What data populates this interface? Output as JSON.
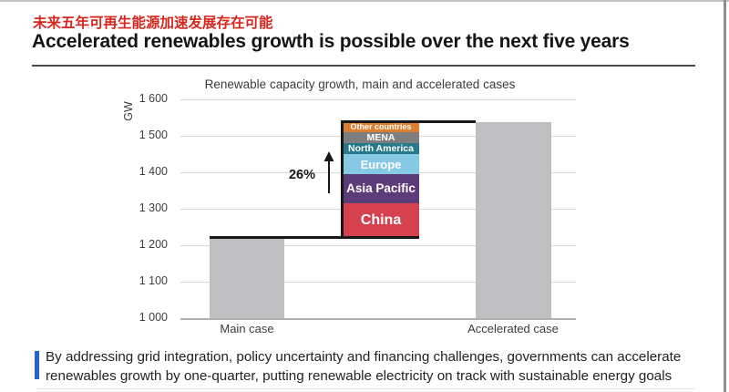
{
  "header": {
    "subtitle_cn": "未来五年可再生能源加速发展存在可能",
    "title_en": "Accelerated renewables growth is possible over the next five years"
  },
  "chart_data": {
    "type": "bar",
    "title": "Renewable capacity growth, main and accelerated cases",
    "ylabel": "GW",
    "ylim": [
      1000,
      1600
    ],
    "ytick_values": [
      1000,
      1100,
      1200,
      1300,
      1400,
      1500,
      1600
    ],
    "ytick_labels": [
      "1 000",
      "1 100",
      "1 200",
      "1 300",
      "1 400",
      "1 500",
      "1 600"
    ],
    "grid": true,
    "legend_position": "none",
    "categories": [
      "Main case",
      "Accelerated case"
    ],
    "values": [
      1220,
      1537
    ],
    "growth_label": "26%",
    "stacked_segments": [
      {
        "name": "China",
        "value": 95,
        "color": "#d5414e"
      },
      {
        "name": "Asia Pacific",
        "value": 80,
        "color": "#5c3c78"
      },
      {
        "name": "Europe",
        "value": 55,
        "color": "#85c9e5"
      },
      {
        "name": "North America",
        "value": 30,
        "color": "#27798c"
      },
      {
        "name": "MENA",
        "value": 30,
        "color": "#7e7e80"
      },
      {
        "name": "Other countries",
        "value": 27,
        "color": "#de7e30"
      }
    ]
  },
  "footer": {
    "line1": "By addressing grid integration, policy uncertainty and financing challenges, governments can accelerate",
    "line2": "renewables growth by one-quarter, putting renewable electricity on track with sustainable energy goals"
  },
  "colors": {
    "title_red": "#d7261d",
    "accent_blue": "#2262d4",
    "bar_gray": "#bfbfc2",
    "step_line": "#181818",
    "grid_line": "#dadada",
    "axis_line": "#b0b0b0",
    "axis_text": "#3d3d3d"
  }
}
